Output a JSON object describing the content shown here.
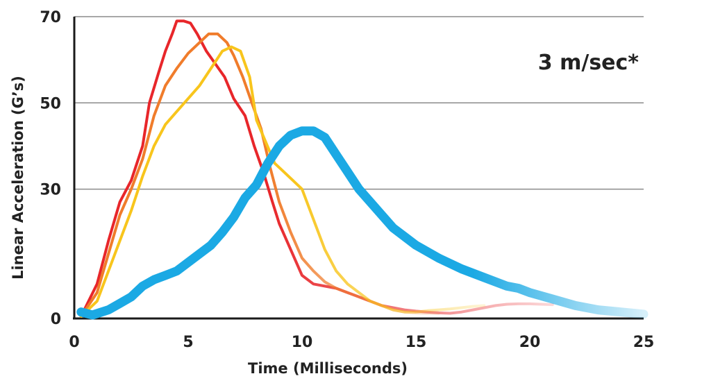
{
  "chart_data": {
    "type": "line",
    "title": "",
    "annotation": "3 m/sec*",
    "xlabel": "Time (Milliseconds)",
    "ylabel": "Linear Acceleration (G’s)",
    "xlim": [
      0,
      25
    ],
    "ylim": [
      0,
      70
    ],
    "x_ticks": [
      0,
      5,
      10,
      15,
      20,
      25
    ],
    "y_ticks": [
      0,
      30,
      50,
      70
    ],
    "grid": "horizontal",
    "series": [
      {
        "color": "#e8262a",
        "x": [
          0.3,
          1.0,
          1.5,
          2.0,
          2.5,
          3.0,
          3.3,
          3.7,
          4.0,
          4.3,
          4.5,
          4.8,
          5.1,
          5.4,
          5.8,
          6.2,
          6.6,
          7.0,
          7.5,
          7.9,
          8.3,
          8.7,
          9.0,
          9.5,
          10.0,
          10.5,
          11.0,
          11.5,
          12.0,
          12.5,
          13.0,
          13.5,
          14.0,
          14.5,
          15.0,
          15.5,
          16.0,
          16.5,
          17.0,
          17.5,
          18.0,
          18.5,
          19.0,
          19.5,
          20.0,
          20.5,
          21.0
        ],
        "y": [
          0.5,
          8,
          18,
          27,
          32,
          40,
          50,
          57,
          62,
          66,
          69,
          69,
          68.5,
          66,
          62,
          59,
          56,
          51,
          47,
          40,
          34,
          27,
          22,
          16,
          10,
          8,
          7.5,
          7,
          6,
          5,
          4,
          3,
          2.5,
          2,
          1.7,
          1.5,
          1.3,
          1.2,
          1.5,
          2,
          2.5,
          3,
          3.3,
          3.4,
          3.4,
          3.3,
          3.2
        ],
        "fade_start": 8.5
      },
      {
        "color": "#f07c2b",
        "x": [
          0.3,
          1.0,
          1.5,
          2.0,
          2.5,
          3.0,
          3.5,
          4.0,
          4.5,
          5.0,
          5.5,
          5.9,
          6.3,
          6.7,
          7.0,
          7.4,
          7.8,
          8.2,
          8.6,
          9.0,
          9.5,
          10.0,
          10.5,
          11.0,
          11.5,
          12.0,
          12.5,
          13.0,
          13.5,
          14.0,
          14.5,
          15.0,
          15.5,
          16.0
        ],
        "y": [
          0.5,
          6,
          15,
          24,
          30,
          37,
          47,
          54,
          58,
          61.5,
          64,
          66,
          66,
          64,
          61,
          56,
          50,
          44,
          35,
          27,
          20,
          14,
          11,
          8.5,
          7,
          6,
          5,
          4,
          3,
          2,
          1.5,
          1.3,
          1.2,
          1.2
        ],
        "fade_start": 8.5
      },
      {
        "color": "#f8c51c",
        "x": [
          0.3,
          1.0,
          1.5,
          2.0,
          2.5,
          3.0,
          3.5,
          4.0,
          4.5,
          5.0,
          5.5,
          6.0,
          6.5,
          6.9,
          7.3,
          7.7,
          8.0,
          8.4,
          8.8,
          9.2,
          9.6,
          10.0,
          10.5,
          11.0,
          11.5,
          12.0,
          12.5,
          13.0,
          13.5,
          14.0,
          14.5,
          15.0,
          15.5,
          16.0,
          16.5,
          17.0,
          17.5,
          18.0
        ],
        "y": [
          0.5,
          4,
          11,
          18,
          25,
          33,
          40,
          45,
          48,
          51,
          54,
          58,
          62,
          63,
          62,
          56,
          46,
          41,
          36,
          34,
          32,
          30,
          23,
          16,
          11,
          8,
          6,
          4,
          3,
          2,
          1.5,
          1.5,
          1.8,
          2,
          2.2,
          2.5,
          2.8,
          3
        ],
        "fade_start": 9.6
      },
      {
        "color": "#1ba9e4",
        "x": [
          0.3,
          0.8,
          1.5,
          2.0,
          2.5,
          3.0,
          3.5,
          4.0,
          4.5,
          5.0,
          5.5,
          6.0,
          6.5,
          7.0,
          7.5,
          8.0,
          8.5,
          9.0,
          9.5,
          10.0,
          10.5,
          11.0,
          11.5,
          12.0,
          12.5,
          13.0,
          13.5,
          14.0,
          14.5,
          15.0,
          16.0,
          17.0,
          18.0,
          19.0,
          19.5,
          20.0,
          21.0,
          22.0,
          23.0,
          24.0,
          25.0
        ],
        "y": [
          1.5,
          0.8,
          2,
          3.5,
          5,
          7.5,
          9,
          10,
          11,
          13,
          15,
          17,
          20,
          23.5,
          28,
          31,
          36,
          40,
          42.5,
          43.5,
          43.5,
          42,
          38,
          34,
          30,
          27,
          24,
          21,
          19,
          17,
          14,
          11.5,
          9.5,
          7.5,
          7,
          6,
          4.5,
          3,
          2,
          1.5,
          1
        ],
        "fade_start": 17.5
      }
    ]
  }
}
